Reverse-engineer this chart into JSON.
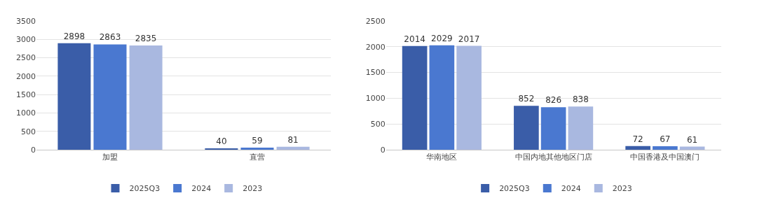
{
  "chart_data": [
    {
      "type": "bar",
      "categories": [
        "加盟",
        "直营"
      ],
      "series": [
        {
          "name": "2025Q3",
          "color": "#3a5da8",
          "values": [
            2898,
            40
          ]
        },
        {
          "name": "2024",
          "color": "#4a78d0",
          "values": [
            2863,
            59
          ]
        },
        {
          "name": "2023",
          "color": "#a9b8e0",
          "values": [
            2835,
            81
          ]
        }
      ],
      "ylim": [
        0,
        3500
      ],
      "yticks": [
        0,
        500,
        1000,
        1500,
        2000,
        2500,
        3000,
        3500
      ],
      "grid": "y",
      "legend": "bottom",
      "data_labels": true
    },
    {
      "type": "bar",
      "categories": [
        "华南地区",
        "中国内地其他地区门店",
        "中国香港及中国澳门"
      ],
      "series": [
        {
          "name": "2025Q3",
          "color": "#3a5da8",
          "values": [
            2014,
            852,
            72
          ]
        },
        {
          "name": "2024",
          "color": "#4a78d0",
          "values": [
            2029,
            826,
            67
          ]
        },
        {
          "name": "2023",
          "color": "#a9b8e0",
          "values": [
            2017,
            838,
            61
          ]
        }
      ],
      "ylim": [
        0,
        2500
      ],
      "yticks": [
        0,
        500,
        1000,
        1500,
        2000,
        2500
      ],
      "grid": "y",
      "legend": "bottom",
      "data_labels": true
    }
  ]
}
